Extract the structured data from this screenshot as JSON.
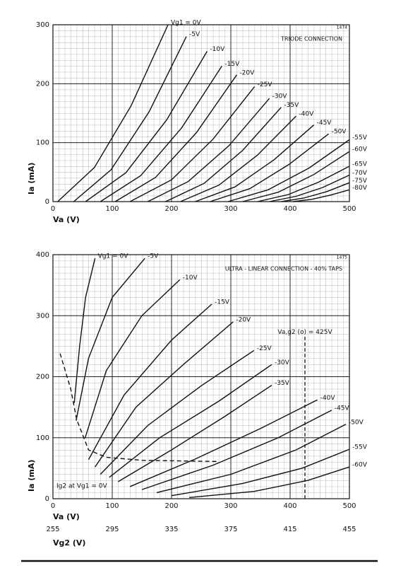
{
  "chart_data": [
    {
      "type": "line",
      "subtitle": "TRIODE CONNECTION",
      "figure_number": "1474",
      "x_label": "Va (V)",
      "y_label": "Ia (mA)",
      "xlim": [
        0,
        500
      ],
      "xticks": [
        0,
        100,
        200,
        300,
        400,
        500
      ],
      "ylim": [
        0,
        300
      ],
      "yticks": [
        0,
        100,
        200,
        300
      ],
      "grid": true,
      "series": [
        {
          "name": "Vg1 = 0V",
          "color": "#111111",
          "x": [
            8,
            70,
            132,
            194
          ],
          "values": [
            0,
            58,
            163,
            300
          ]
        },
        {
          "name": "-5V",
          "color": "#111111",
          "x": [
            35,
            98,
            162,
            225
          ],
          "values": [
            0,
            54,
            152,
            280
          ]
        },
        {
          "name": "-10V",
          "color": "#111111",
          "x": [
            55,
            123,
            192,
            260
          ],
          "values": [
            0,
            49,
            139,
            255
          ]
        },
        {
          "name": "-15V",
          "color": "#111111",
          "x": [
            80,
            148,
            217,
            285
          ],
          "values": [
            0,
            44,
            125,
            230
          ]
        },
        {
          "name": "-20V",
          "color": "#111111",
          "x": [
            105,
            173,
            242,
            310
          ],
          "values": [
            0,
            41,
            117,
            215
          ]
        },
        {
          "name": "-25V",
          "color": "#111111",
          "x": [
            130,
            200,
            270,
            340
          ],
          "values": [
            0,
            37,
            106,
            195
          ]
        },
        {
          "name": "-30V",
          "color": "#111111",
          "x": [
            160,
            228,
            297,
            365
          ],
          "values": [
            0,
            34,
            95,
            175
          ]
        },
        {
          "name": "-35V",
          "color": "#111111",
          "x": [
            190,
            255,
            320,
            385
          ],
          "values": [
            0,
            31,
            87,
            160
          ]
        },
        {
          "name": "-40V",
          "color": "#111111",
          "x": [
            215,
            280,
            345,
            410
          ],
          "values": [
            0,
            28,
            79,
            145
          ]
        },
        {
          "name": "-45V",
          "color": "#111111",
          "x": [
            240,
            307,
            373,
            440
          ],
          "values": [
            0,
            25,
            71,
            130
          ]
        },
        {
          "name": "-50V",
          "color": "#111111",
          "x": [
            265,
            332,
            398,
            465
          ],
          "values": [
            0,
            22,
            63,
            115
          ]
        },
        {
          "name": "-55V",
          "color": "#111111",
          "x": [
            295,
            363,
            432,
            500
          ],
          "values": [
            0,
            20,
            57,
            105
          ]
        },
        {
          "name": "-60V",
          "color": "#111111",
          "x": [
            320,
            380,
            440,
            500
          ],
          "values": [
            0,
            16,
            46,
            85
          ]
        },
        {
          "name": "-65V",
          "color": "#111111",
          "x": [
            345,
            397,
            448,
            500
          ],
          "values": [
            0,
            12,
            33,
            60
          ]
        },
        {
          "name": "-70V",
          "color": "#111111",
          "x": [
            365,
            410,
            455,
            500
          ],
          "values": [
            0,
            9,
            24,
            45
          ]
        },
        {
          "name": "-75V",
          "color": "#111111",
          "x": [
            385,
            423,
            462,
            500
          ],
          "values": [
            0,
            6,
            17,
            32
          ]
        },
        {
          "name": "-80V",
          "color": "#111111",
          "x": [
            405,
            437,
            468,
            500
          ],
          "values": [
            0,
            4,
            11,
            20
          ]
        }
      ]
    },
    {
      "type": "line",
      "subtitle": "ULTRA - LINEAR CONNECTION - 40% TAPS",
      "figure_number": "1475",
      "x_label": "Va (V)",
      "y_label": "Ia (mA)",
      "x2_label": "Vg2 (V)",
      "xlim": [
        0,
        500
      ],
      "xticks": [
        0,
        100,
        200,
        300,
        400,
        500
      ],
      "x2lim": [
        255,
        455
      ],
      "x2ticks": [
        255,
        295,
        335,
        375,
        415,
        455
      ],
      "ylim": [
        0,
        400
      ],
      "yticks": [
        0,
        100,
        200,
        300,
        400
      ],
      "grid": true,
      "reference_line": {
        "x": 425,
        "y": [
          0,
          267
        ],
        "label": "Va,g2 (o) = 425V"
      },
      "series": [
        {
          "name": "Vg1 = 0V",
          "color": "#111111",
          "x": [
            36,
            45,
            55,
            71
          ],
          "values": [
            157,
            250,
            330,
            394
          ]
        },
        {
          "name": "-5V",
          "color": "#111111",
          "x": [
            39,
            60,
            100,
            155
          ],
          "values": [
            128,
            230,
            330,
            394
          ]
        },
        {
          "name": "-10V",
          "color": "#111111",
          "x": [
            54,
            90,
            150,
            214
          ],
          "values": [
            99,
            210,
            300,
            359
          ]
        },
        {
          "name": "-15V",
          "color": "#111111",
          "x": [
            60,
            120,
            200,
            268
          ],
          "values": [
            64,
            170,
            260,
            319
          ]
        },
        {
          "name": "-20V",
          "color": "#111111",
          "x": [
            71,
            140,
            220,
            304
          ],
          "values": [
            52,
            150,
            220,
            290
          ]
        },
        {
          "name": "-25V",
          "color": "#111111",
          "x": [
            80,
            160,
            250,
            339
          ],
          "values": [
            40,
            120,
            185,
            243
          ]
        },
        {
          "name": "-30V",
          "color": "#111111",
          "x": [
            95,
            180,
            280,
            369
          ],
          "values": [
            35,
            100,
            160,
            220
          ]
        },
        {
          "name": "-35V",
          "color": "#111111",
          "x": [
            110,
            200,
            290,
            369
          ],
          "values": [
            28,
            80,
            135,
            186
          ]
        },
        {
          "name": "-40V",
          "color": "#111111",
          "x": [
            130,
            240,
            350,
            446
          ],
          "values": [
            20,
            65,
            115,
            162
          ]
        },
        {
          "name": "-45V",
          "color": "#111111",
          "x": [
            150,
            270,
            380,
            470
          ],
          "values": [
            15,
            55,
            100,
            145
          ]
        },
        {
          "name": "-50V",
          "color": "#111111",
          "x": [
            175,
            300,
            410,
            494
          ],
          "values": [
            10,
            40,
            80,
            122
          ]
        },
        {
          "name": "-55V",
          "color": "#111111",
          "x": [
            200,
            320,
            420,
            500
          ],
          "values": [
            5,
            25,
            50,
            81
          ]
        },
        {
          "name": "-60V",
          "color": "#111111",
          "x": [
            230,
            340,
            430,
            500
          ],
          "values": [
            2,
            12,
            30,
            52
          ]
        },
        {
          "name": "Ig2 at Vg1 = 0V",
          "color": "#111111",
          "dashed": true,
          "x": [
            12,
            30,
            40,
            60,
            90,
            150,
            280
          ],
          "values": [
            238,
            180,
            130,
            80,
            68,
            63,
            61
          ]
        }
      ]
    }
  ]
}
